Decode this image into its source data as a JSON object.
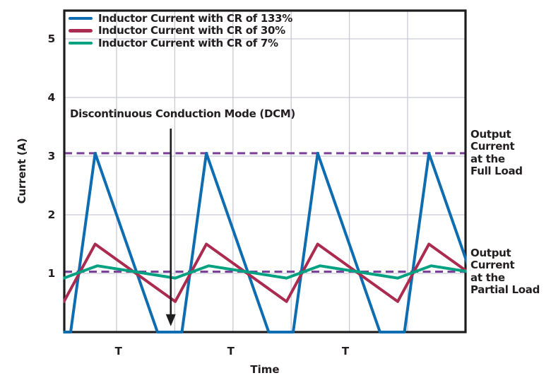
{
  "chart_data": {
    "type": "line",
    "title": "",
    "xlabel": "Time",
    "ylabel": "Current (A)",
    "x_unit": "switching periods (T)",
    "t_range": [
      -0.057,
      3.549
    ],
    "ylim": [
      0,
      5.48
    ],
    "yticks": [
      1,
      2,
      3,
      4,
      5
    ],
    "grid": true,
    "legend_position": "top-left-inside",
    "period_labels": [
      {
        "label": "T",
        "t": 0.43
      },
      {
        "label": "T",
        "t": 1.44
      },
      {
        "label": "T",
        "t": 2.47
      }
    ],
    "series": [
      {
        "id": "cr133",
        "name": "Inductor Current with CR of 133%",
        "color": "#0e6cb0",
        "mode": "discontinuous",
        "periods_shown": 4,
        "peak_a": 3.05,
        "valley_a": 0,
        "cycle_points": [
          [
            0,
            0
          ],
          [
            0.22,
            3.05
          ],
          [
            0.78,
            0
          ],
          [
            1,
            0
          ]
        ]
      },
      {
        "id": "cr30",
        "name": "Inductor Current with CR of 30%",
        "color": "#ab2a50",
        "mode": "continuous",
        "periods_shown": 4,
        "peak_a": 1.5,
        "valley_a": 0.52,
        "cycle_points": [
          [
            0.22,
            1.5
          ],
          [
            0.94,
            0.52
          ]
        ]
      },
      {
        "id": "cr7",
        "name": "Inductor Current with CR of 7%",
        "color": "#00a181",
        "mode": "continuous",
        "periods_shown": 4,
        "peak_a": 1.13,
        "valley_a": 0.92,
        "cycle_points": [
          [
            0.24,
            1.13
          ],
          [
            0.94,
            0.92
          ]
        ]
      }
    ],
    "reference_lines": [
      {
        "id": "full-load",
        "value": 3.05,
        "style": "dashed",
        "color": "#7c3f9a",
        "label": "Output Current at the Full Load",
        "label_lines": [
          "Output",
          "Current",
          "at the",
          "Full Load"
        ]
      },
      {
        "id": "partial-load",
        "value": 1.03,
        "style": "dashed",
        "color": "#7c3f9a",
        "label": "Output Current at the Partial Load",
        "label_lines": [
          "Output",
          "Current",
          "at the",
          "Partial Load"
        ]
      }
    ],
    "annotations": {
      "dcm": {
        "text": "Discontinuous Conduction Mode (DCM)",
        "arrow_t": 0.9,
        "arrow_from_a": 3.47,
        "arrow_to_a": 0.1
      }
    }
  },
  "colors": {
    "background": "#ffffff",
    "axis": "#1d1d1f",
    "grid": "#c9c9d6",
    "text": "#231f20",
    "arrow": "#1d1d1f"
  }
}
